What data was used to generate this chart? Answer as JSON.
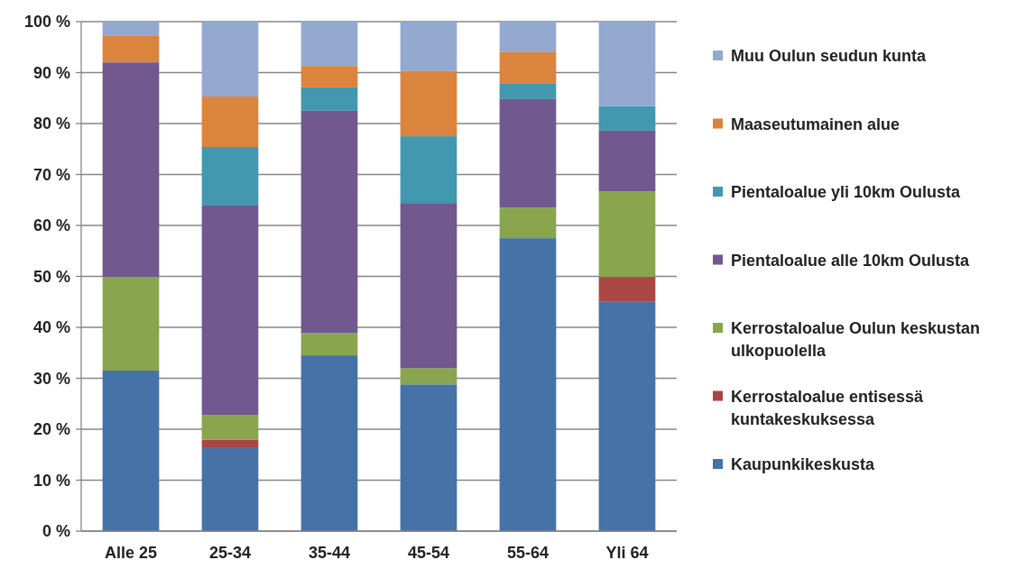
{
  "chart_data": {
    "type": "bar",
    "stacked": true,
    "categories": [
      "Alle 25",
      "25-34",
      "35-44",
      "45-54",
      "55-64",
      "Yli 64"
    ],
    "series": [
      {
        "name": "Kaupunkikeskusta",
        "color": "#4572a7",
        "values": [
          31.5,
          16.3,
          34.5,
          28.8,
          57.5,
          45.1
        ]
      },
      {
        "name": "Kerrostaloalue entisessä kuntakeskuksessa",
        "color": "#aa4643",
        "values": [
          0,
          1.6,
          0,
          0,
          0,
          4.8
        ]
      },
      {
        "name": "Kerrostaloalue Oulun keskustan ulkopuolella",
        "color": "#89a54e",
        "values": [
          18.4,
          4.9,
          4.4,
          3.2,
          6.0,
          16.8
        ]
      },
      {
        "name": "Pientaloalue alle 10km Oulusta",
        "color": "#71588f",
        "values": [
          42.1,
          41.1,
          43.6,
          32.4,
          21.3,
          11.9
        ]
      },
      {
        "name": "Pientaloalue yli 10km Oulusta",
        "color": "#4198af",
        "values": [
          0,
          11.5,
          4.6,
          13.1,
          3.0,
          4.8
        ]
      },
      {
        "name": "Maaseutumainen alue",
        "color": "#db843d",
        "values": [
          5.3,
          9.9,
          4.2,
          12.8,
          6.2,
          0
        ]
      },
      {
        "name": "Muu Oulun seudun kunta",
        "color": "#93a9cf",
        "values": [
          2.7,
          14.7,
          8.7,
          9.7,
          6.0,
          16.6
        ]
      }
    ],
    "ylim": [
      0,
      100
    ],
    "yticks": [
      {
        "value": 0,
        "label": "0 %"
      },
      {
        "value": 10,
        "label": "10 %"
      },
      {
        "value": 20,
        "label": "20 %"
      },
      {
        "value": 30,
        "label": "30 %"
      },
      {
        "value": 40,
        "label": "40 %"
      },
      {
        "value": 50,
        "label": "50 %"
      },
      {
        "value": 60,
        "label": "60 %"
      },
      {
        "value": 70,
        "label": "70 %"
      },
      {
        "value": 80,
        "label": "80 %"
      },
      {
        "value": 90,
        "label": "90 %"
      },
      {
        "value": 100,
        "label": "100 %"
      }
    ],
    "grid": "y",
    "legend": "right"
  }
}
